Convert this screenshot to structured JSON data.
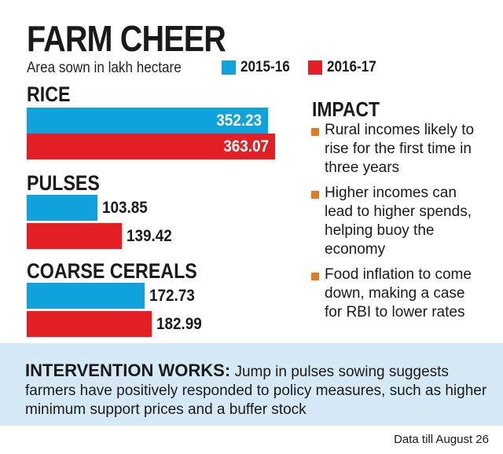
{
  "chart_data": {
    "type": "bar",
    "orientation": "horizontal",
    "title": "FARM CHEER",
    "subtitle": "Area sown in lakh hectare",
    "categories": [
      "RICE",
      "PULSES",
      "COARSE CEREALS"
    ],
    "series": [
      {
        "name": "2015-16",
        "values": [
          352.23,
          103.85,
          172.73
        ],
        "value_labels": [
          "352.23",
          "103.85",
          "172.73"
        ]
      },
      {
        "name": "2016-17",
        "values": [
          363.07,
          139.42,
          182.99
        ],
        "value_labels": [
          "363.07",
          "139.42",
          "182.99"
        ]
      }
    ],
    "xlim": [
      0,
      400
    ],
    "grid": false,
    "legend": "top-right"
  },
  "colors": {
    "series_2015_16": "#0fa2dd",
    "series_2016_17": "#e31e24",
    "bullet": "#e07a22",
    "bottom_panel": "#d5e9f7"
  },
  "impact": {
    "title": "IMPACT",
    "items": [
      "Rural incomes likely to rise for the first time in three years",
      "Higher incomes can lead to higher spends, helping buoy the economy",
      "Food inflation to come down, making a case for RBI to lower rates"
    ]
  },
  "intervention": {
    "lead": "INTERVENTION WORKS:",
    "text": "Jump in pulses sowing suggests farmers have positively responded to policy measures, such as higher minimum support prices and a buffer stock"
  },
  "footnote": "Data till August 26"
}
